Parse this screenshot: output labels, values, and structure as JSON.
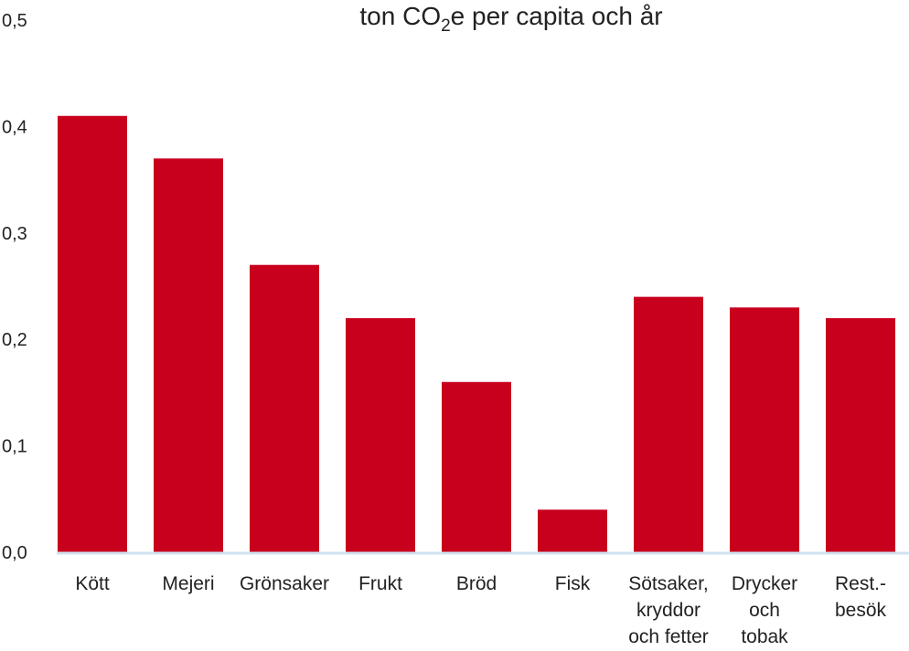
{
  "chart_data": {
    "type": "bar",
    "title_parts": {
      "pre": "ton CO",
      "sub": "2",
      "post": "e per capita och år"
    },
    "categories": [
      [
        "Kött"
      ],
      [
        "Mejeri"
      ],
      [
        "Grönsaker"
      ],
      [
        "Frukt"
      ],
      [
        "Bröd"
      ],
      [
        "Fisk"
      ],
      [
        "Sötsaker,",
        "kryddor",
        "och fetter"
      ],
      [
        "Drycker",
        "och",
        "tobak"
      ],
      [
        "Rest.-",
        "besök"
      ]
    ],
    "values": [
      0.41,
      0.37,
      0.27,
      0.22,
      0.16,
      0.04,
      0.24,
      0.23,
      0.22
    ],
    "yticks": [
      "0,0",
      "0,1",
      "0,2",
      "0,3",
      "0,4",
      "0,5"
    ],
    "ylim": [
      0,
      0.5
    ],
    "grid": false,
    "colors": {
      "bar": "#c8001e",
      "baseline": "#cfe3f1",
      "text": "#222222"
    }
  }
}
